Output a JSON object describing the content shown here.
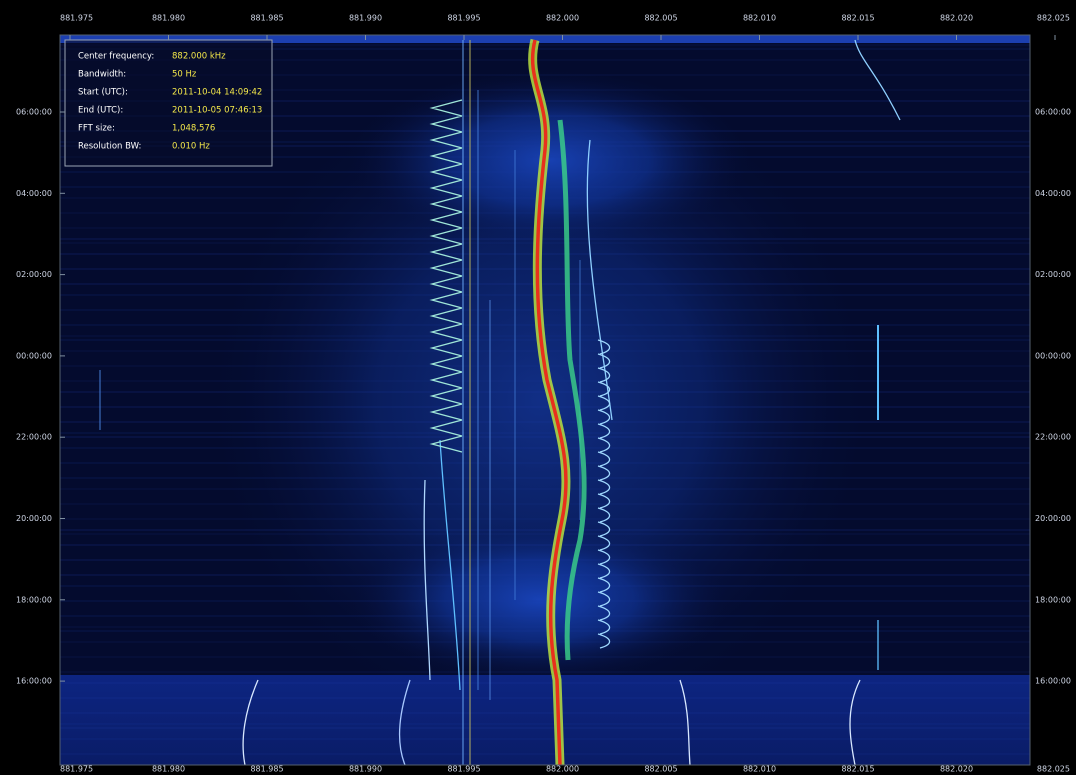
{
  "info_box": {
    "rows": [
      {
        "label": "Center frequency:",
        "value": "882.000 kHz"
      },
      {
        "label": "Bandwidth:",
        "value": "50 Hz"
      },
      {
        "label": "Start (UTC):",
        "value": "2011-10-04 14:09:42"
      },
      {
        "label": "End (UTC):",
        "value": "2011-10-05 07:46:13"
      },
      {
        "label": "FFT size:",
        "value": "1,048,576"
      },
      {
        "label": "Resolution BW:",
        "value": "0.010 Hz"
      }
    ]
  },
  "x_axis": {
    "labels": [
      "881.975",
      "881.980",
      "881.985",
      "881.990",
      "881.995",
      "882.000",
      "882.005",
      "882.010",
      "882.015",
      "882.020",
      "882.025"
    ]
  },
  "y_axis": {
    "labels": [
      "06:00:00",
      "04:00:00",
      "02:00:00",
      "00:00:00",
      "22:00:00",
      "20:00:00",
      "18:00:00",
      "16:00:00"
    ]
  }
}
